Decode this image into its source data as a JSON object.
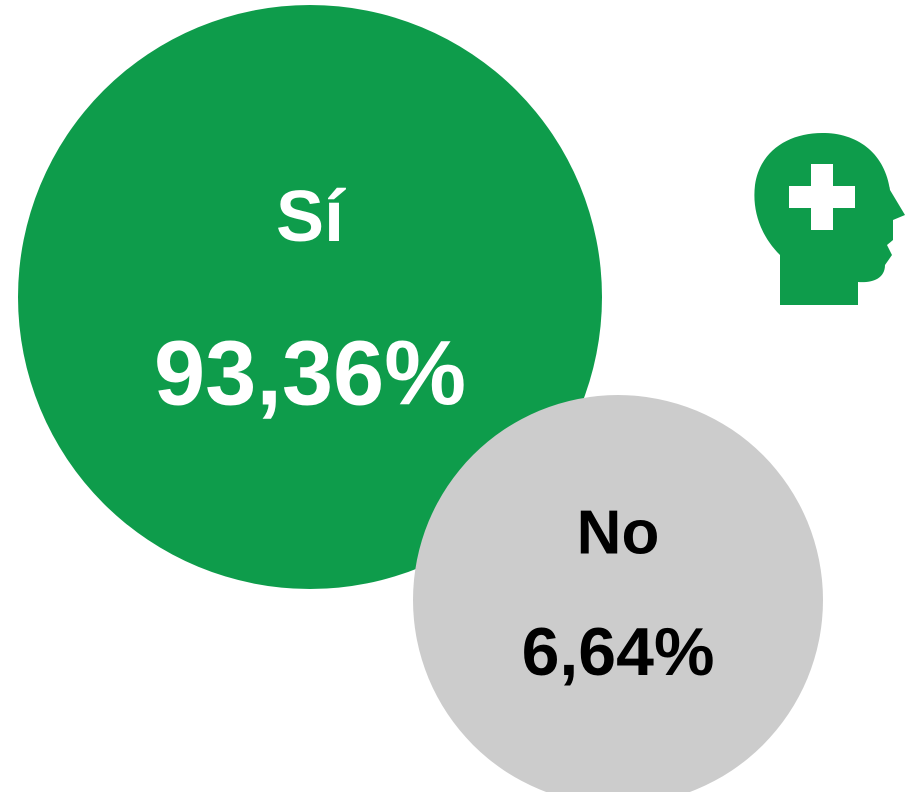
{
  "items": [
    {
      "label": "Sí",
      "value": "93,36%"
    },
    {
      "label": "No",
      "value": "6,64%"
    }
  ]
}
